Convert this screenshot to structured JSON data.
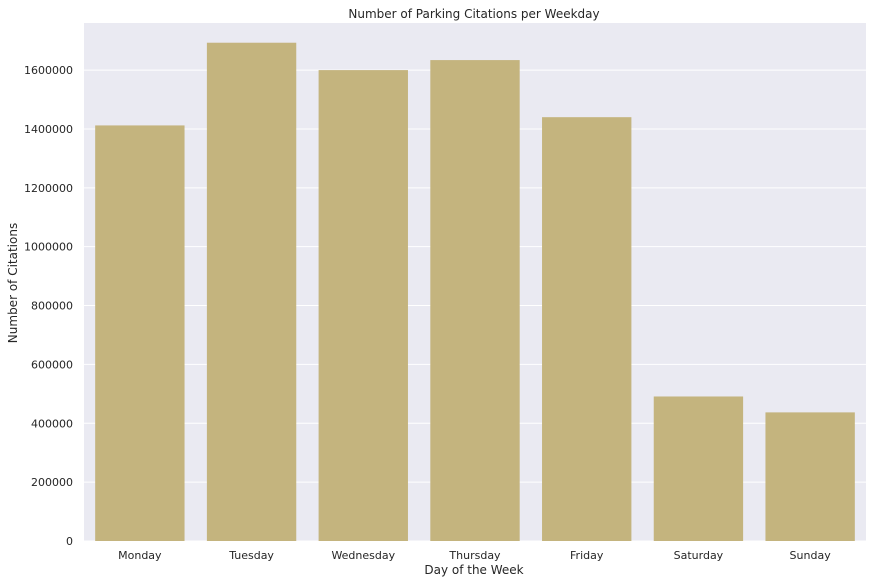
{
  "chart_data": {
    "type": "bar",
    "title": "Number of Parking Citations per Weekday",
    "xlabel": "Day of the Week",
    "ylabel": "Number of Citations",
    "categories": [
      "Monday",
      "Tuesday",
      "Wednesday",
      "Thursday",
      "Friday",
      "Saturday",
      "Sunday"
    ],
    "values": [
      1412000,
      1693000,
      1600000,
      1634000,
      1440000,
      491000,
      437000
    ],
    "ylim": [
      0,
      1760000
    ],
    "yticks": [
      0,
      200000,
      400000,
      600000,
      800000,
      1000000,
      1200000,
      1400000,
      1600000
    ],
    "ytick_labels": [
      "0",
      "200000",
      "400000",
      "600000",
      "800000",
      "1000000",
      "1200000",
      "1400000",
      "1600000"
    ],
    "grid": true,
    "colors": {
      "bar": "#c4b47e",
      "plot_background": "#eaeaf2",
      "grid": "#ffffff"
    }
  }
}
